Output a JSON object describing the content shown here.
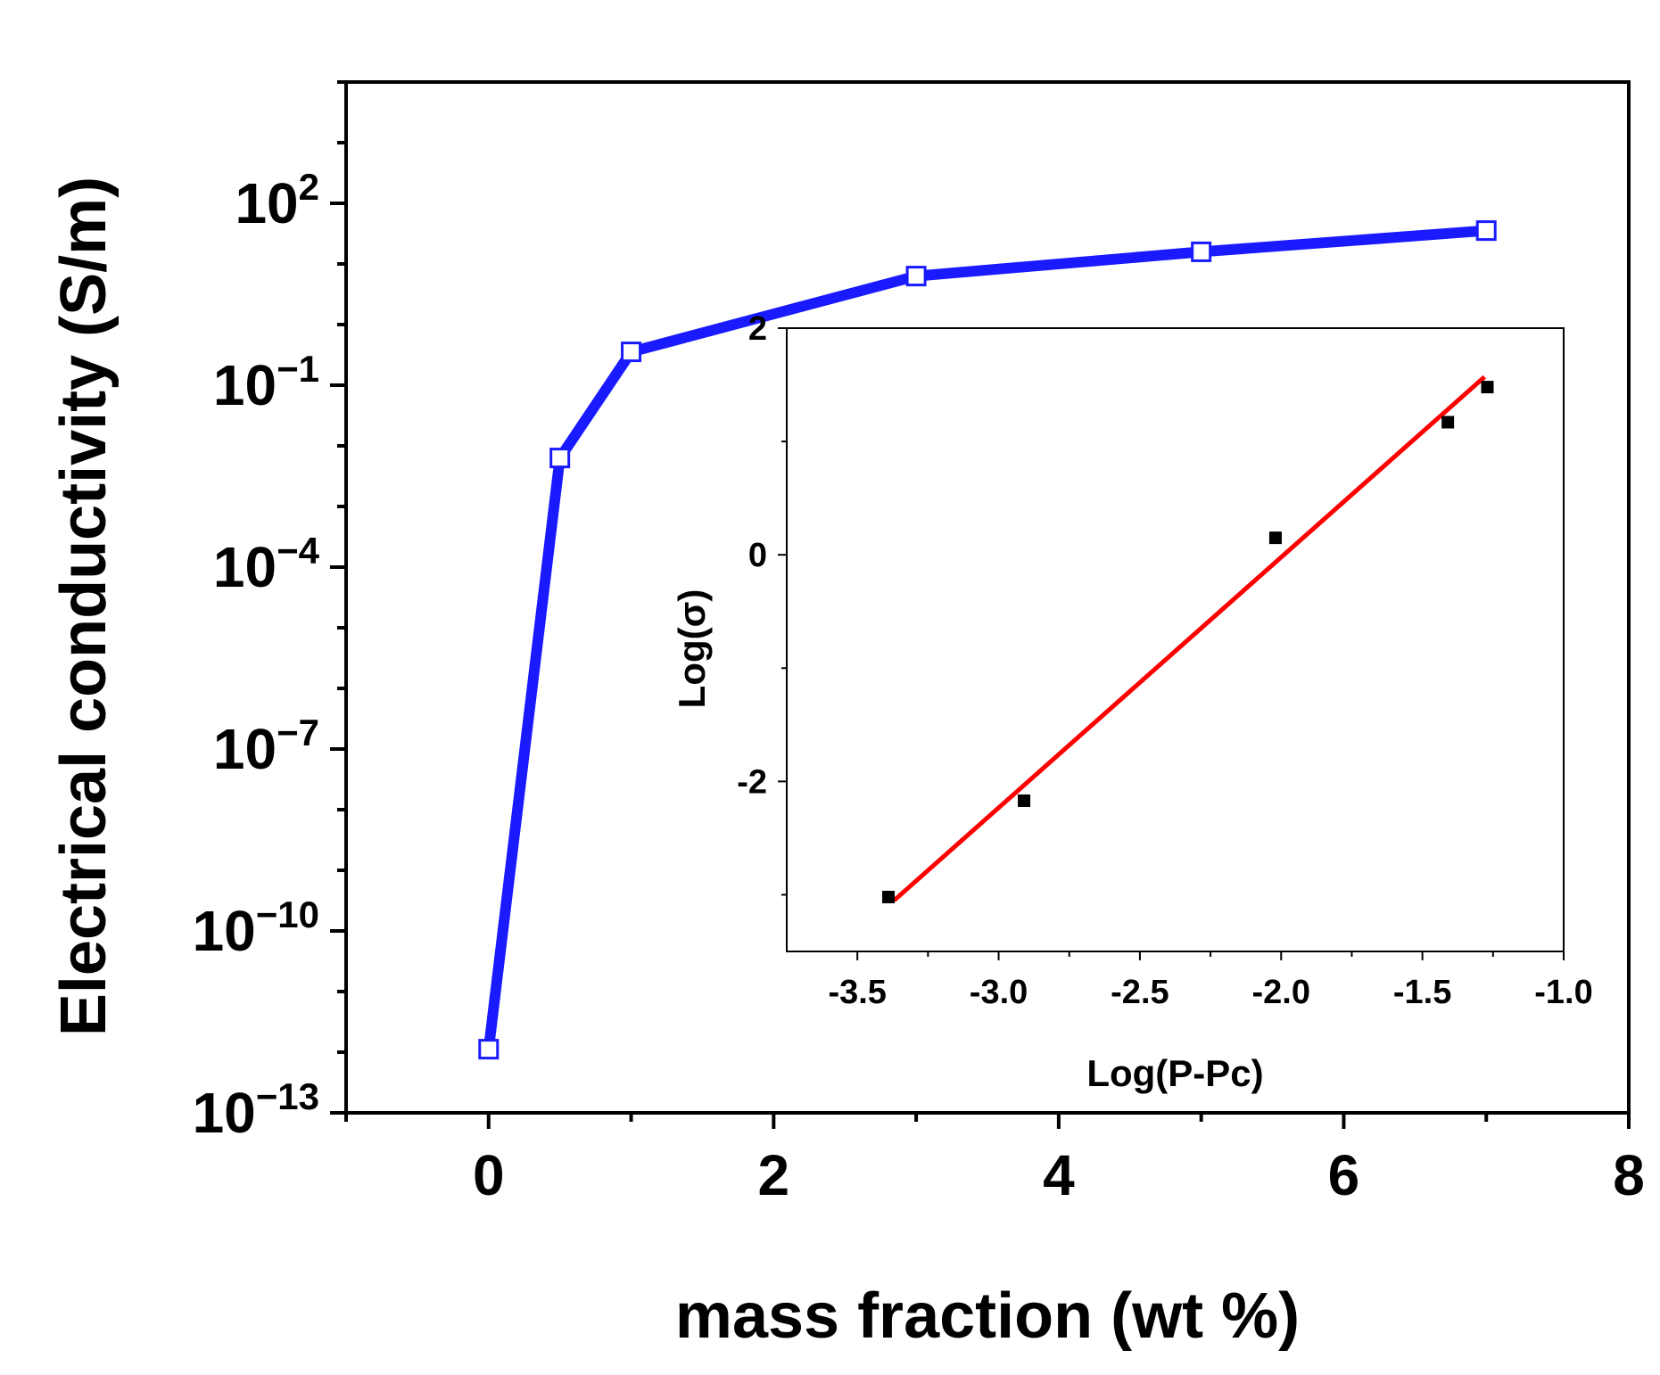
{
  "chart_data": [
    {
      "type": "line",
      "panel": "main",
      "xlabel": "mass fraction (wt %)",
      "ylabel": "Electrical conductivity (S/m)",
      "xlim": [
        -1,
        8
      ],
      "ylim_log10": [
        -13,
        4
      ],
      "yscale": "log",
      "xticks": [
        0,
        2,
        4,
        6,
        8
      ],
      "yticks": [
        {
          "base": "10",
          "exp": "2",
          "log": 2
        },
        {
          "base": "10",
          "exp": "−1",
          "log": -1
        },
        {
          "base": "10",
          "exp": "−4",
          "log": -4
        },
        {
          "base": "10",
          "exp": "−7",
          "log": -7
        },
        {
          "base": "10",
          "exp": "−10",
          "log": -10
        },
        {
          "base": "10",
          "exp": "−13",
          "log": -13
        }
      ],
      "series": [
        {
          "name": "conductivity",
          "color": "#1a1aff",
          "marker": "open-square",
          "x": [
            0,
            0.5,
            1,
            3,
            5,
            7
          ],
          "log10_y": [
            -11.95,
            -2.2,
            -0.45,
            0.8,
            1.2,
            1.55
          ]
        }
      ]
    },
    {
      "type": "scatter",
      "panel": "inset",
      "xlabel": "Log(P-Pc)",
      "ylabel": "Log(σ)",
      "xlim": [
        -3.75,
        -1.0
      ],
      "ylim": [
        -3.5,
        2.0
      ],
      "xticks": [
        "-3.5",
        "-3.0",
        "-2.5",
        "-2.0",
        "-1.5",
        "-1.0"
      ],
      "yticks": [
        "2",
        "0",
        "-2"
      ],
      "series": [
        {
          "name": "data",
          "color": "#000000",
          "marker": "filled-square",
          "x": [
            -3.39,
            -2.91,
            -2.02,
            -1.41,
            -1.27
          ],
          "y": [
            -3.02,
            -2.17,
            0.15,
            1.17,
            1.48
          ]
        },
        {
          "name": "linear fit",
          "color": "#ff0000",
          "x": [
            -3.37,
            -1.28
          ],
          "y": [
            -3.05,
            1.57
          ]
        }
      ]
    }
  ]
}
